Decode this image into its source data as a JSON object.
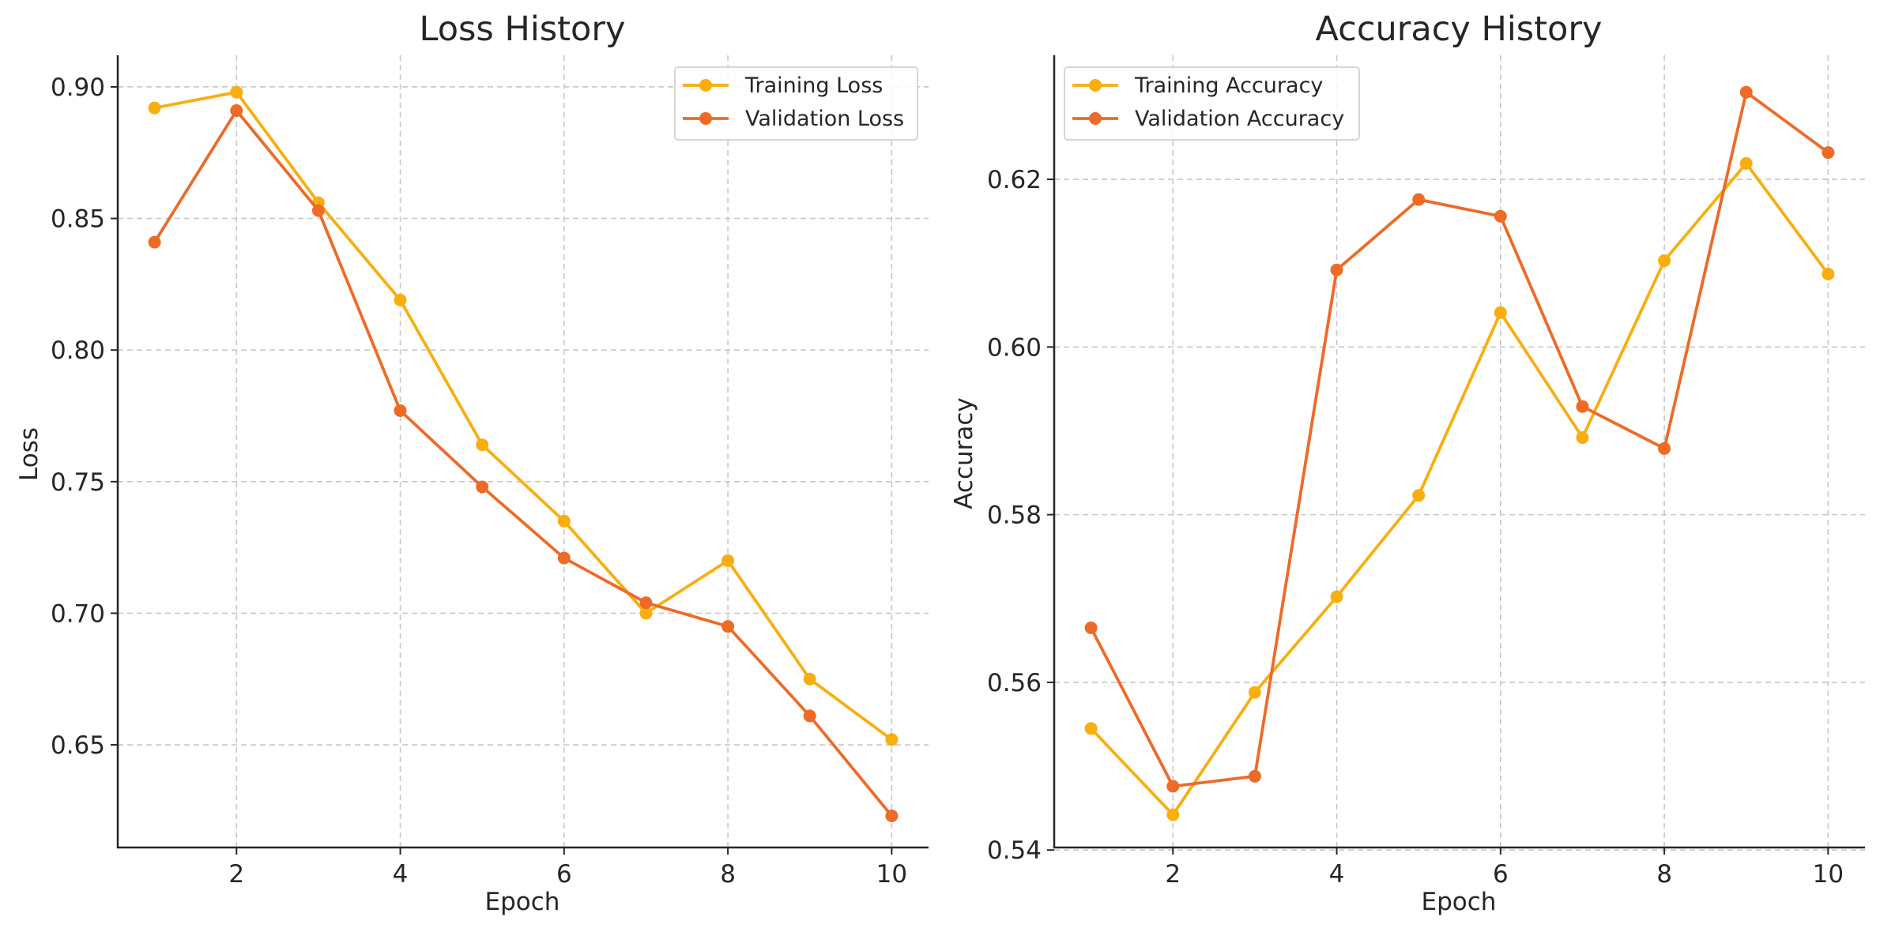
{
  "chart_data": [
    {
      "type": "line",
      "title": "Loss History",
      "xlabel": "Epoch",
      "ylabel": "Loss",
      "x": [
        1,
        2,
        3,
        4,
        5,
        6,
        7,
        8,
        9,
        10
      ],
      "xlim": [
        0.55,
        10.45
      ],
      "ylim": [
        0.611,
        0.912
      ],
      "xticks": [
        2,
        4,
        6,
        8,
        10
      ],
      "yticks": [
        0.65,
        0.7,
        0.75,
        0.8,
        0.85,
        0.9
      ],
      "grid": true,
      "legend_position": "upper right",
      "series": [
        {
          "name": "Training Loss",
          "color": "#F9AE0F",
          "marker": "circle",
          "values": [
            0.892,
            0.898,
            0.856,
            0.819,
            0.764,
            0.735,
            0.7,
            0.72,
            0.675,
            0.652
          ]
        },
        {
          "name": "Validation Loss",
          "color": "#EE6A27",
          "marker": "circle",
          "values": [
            0.841,
            0.891,
            0.853,
            0.777,
            0.748,
            0.721,
            0.704,
            0.695,
            0.661,
            0.623
          ]
        }
      ]
    },
    {
      "type": "line",
      "title": "Accuracy History",
      "xlabel": "Epoch",
      "ylabel": "Accuracy",
      "x": [
        1,
        2,
        3,
        4,
        5,
        6,
        7,
        8,
        9,
        10
      ],
      "xlim": [
        0.55,
        10.45
      ],
      "ylim": [
        0.5403,
        0.6348
      ],
      "xticks": [
        2,
        4,
        6,
        8,
        10
      ],
      "yticks": [
        0.54,
        0.56,
        0.58,
        0.6,
        0.62
      ],
      "grid": true,
      "legend_position": "upper left",
      "series": [
        {
          "name": "Training Accuracy",
          "color": "#F9AE0F",
          "marker": "circle",
          "values": [
            0.5545,
            0.5442,
            0.5588,
            0.5702,
            0.5823,
            0.6041,
            0.5892,
            0.6103,
            0.6219,
            0.6087
          ]
        },
        {
          "name": "Validation Accuracy",
          "color": "#EE6A27",
          "marker": "circle",
          "values": [
            0.5665,
            0.5476,
            0.5488,
            0.6092,
            0.6176,
            0.6156,
            0.5929,
            0.5879,
            0.6304,
            0.6232
          ]
        }
      ]
    }
  ]
}
